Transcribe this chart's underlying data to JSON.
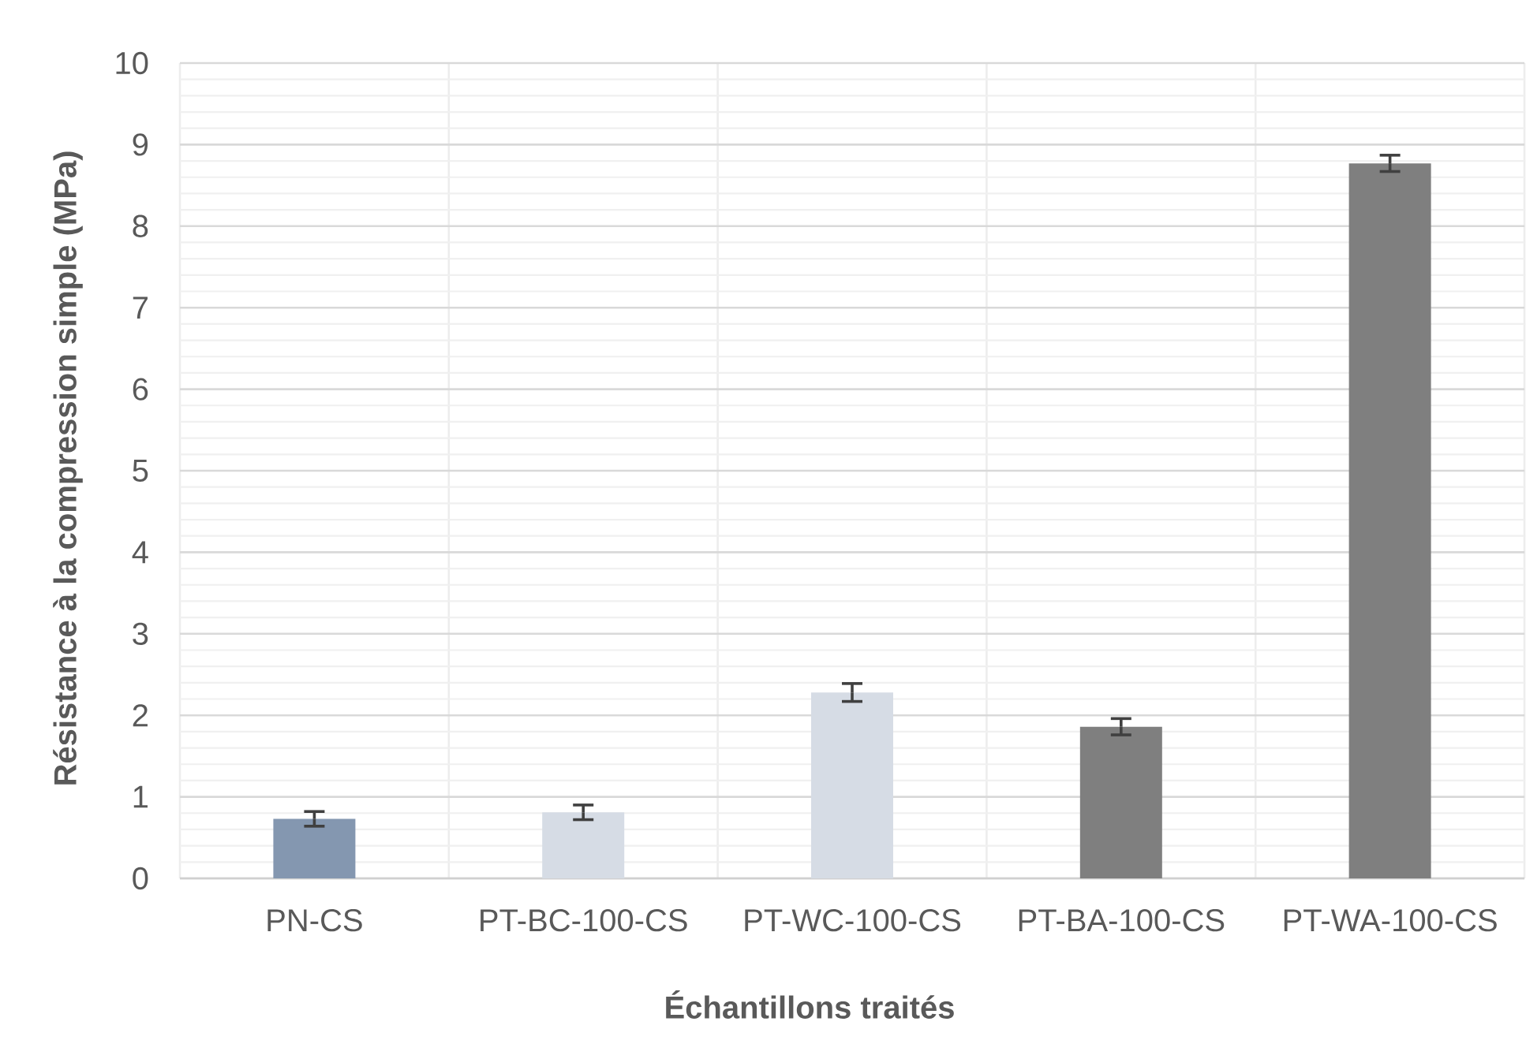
{
  "chart_data": {
    "type": "bar",
    "xlabel": "Échantillons traités",
    "ylabel": "Résistance à la compression simple (MPa)",
    "categories": [
      "PN-CS",
      "PT-BC-100-CS",
      "PT-WC-100-CS",
      "PT-BA-100-CS",
      "PT-WA-100-CS"
    ],
    "values": [
      0.73,
      0.81,
      2.28,
      1.86,
      8.77
    ],
    "errors": [
      0.09,
      0.09,
      0.11,
      0.1,
      0.1
    ],
    "colors": [
      "#8497b0",
      "#d6dce5",
      "#d6dce5",
      "#7f7f7f",
      "#7f7f7f"
    ],
    "ylim": [
      0,
      10
    ],
    "yticks": [
      0,
      {
        "value": 0.2,
        "label": null
      },
      {
        "value": 0.4,
        "label": null
      },
      {
        "value": 0.6,
        "label": null
      },
      {
        "value": 0.8,
        "label": null
      },
      1,
      {
        "value": 1.2,
        "label": null
      },
      {
        "value": 1.4,
        "label": null
      },
      {
        "value": 1.6,
        "label": null
      },
      {
        "value": 1.8,
        "label": null
      },
      2,
      {
        "value": 2.2,
        "label": null
      },
      {
        "value": 2.4,
        "label": null
      },
      {
        "value": 2.6,
        "label": null
      },
      {
        "value": 2.8,
        "label": null
      },
      3,
      {
        "value": 3.2,
        "label": null
      },
      {
        "value": 3.4,
        "label": null
      },
      {
        "value": 3.6,
        "label": null
      },
      {
        "value": 3.8,
        "label": null
      },
      4,
      {
        "value": 4.2,
        "label": null
      },
      {
        "value": 4.4,
        "label": null
      },
      {
        "value": 4.6,
        "label": null
      },
      {
        "value": 4.8,
        "label": null
      },
      5,
      {
        "value": 5.2,
        "label": null
      },
      {
        "value": 5.4,
        "label": null
      },
      {
        "value": 5.6,
        "label": null
      },
      {
        "value": 5.8,
        "label": null
      },
      6,
      {
        "value": 6.2,
        "label": null
      },
      {
        "value": 6.4,
        "label": null
      },
      {
        "value": 6.6,
        "label": null
      },
      {
        "value": 6.8,
        "label": null
      },
      7,
      {
        "value": 7.2,
        "label": null
      },
      {
        "value": 7.4,
        "label": null
      },
      {
        "value": 7.6,
        "label": null
      },
      {
        "value": 7.8,
        "label": null
      },
      8,
      {
        "value": 8.2,
        "label": null
      },
      {
        "value": 8.4,
        "label": null
      },
      {
        "value": 8.6,
        "label": null
      },
      {
        "value": 8.8,
        "label": null
      },
      9,
      {
        "value": 9.2,
        "label": null
      },
      {
        "value": 9.4,
        "label": null
      },
      {
        "value": 9.6,
        "label": null
      },
      {
        "value": 9.8,
        "label": null
      },
      10
    ],
    "grid": true
  }
}
